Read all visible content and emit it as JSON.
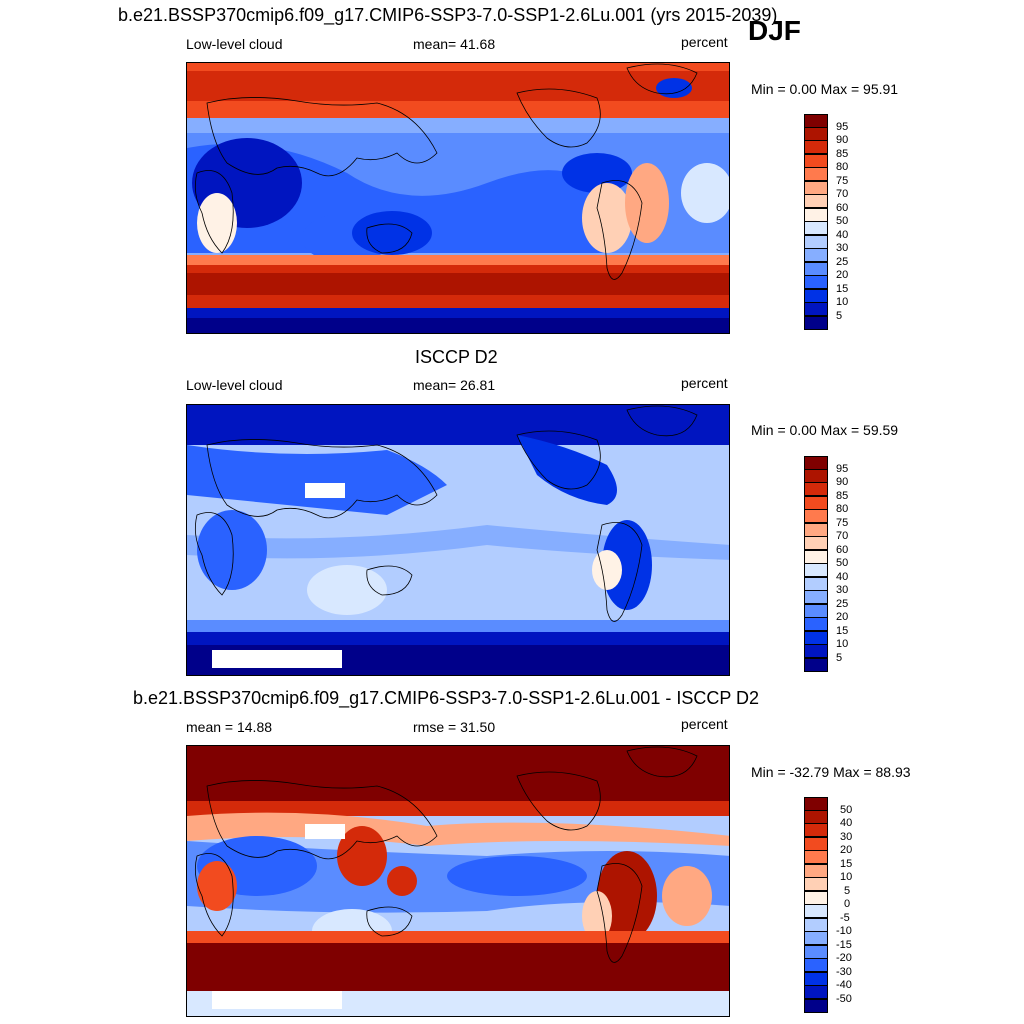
{
  "season": "DJF",
  "colors": {
    "abs_scale": [
      "#00008a",
      "#0015c0",
      "#0032e6",
      "#2a62ff",
      "#5a8cff",
      "#86aeff",
      "#b2cdff",
      "#d8e8ff",
      "#fff2e6",
      "#ffd0b5",
      "#ffa882",
      "#ff7a4d",
      "#f24b1f",
      "#d42a0a",
      "#ad1400",
      "#7f0000"
    ],
    "diff_scale": [
      "#00008a",
      "#0015c0",
      "#0032e6",
      "#2a62ff",
      "#5a8cff",
      "#86aeff",
      "#b2cdff",
      "#d8e8ff",
      "#fff2e6",
      "#ffd0b5",
      "#ffa882",
      "#ff7a4d",
      "#f24b1f",
      "#d42a0a",
      "#ad1400",
      "#7f0000"
    ],
    "coastline": "#000000",
    "missing": "#ffffff"
  },
  "panels": [
    {
      "id": "model",
      "title": "b.e21.BSSP370cmip6.f09_g17.CMIP6-SSP3-7.0-SSP1-2.6Lu.001 (yrs 2015-2039)",
      "left_label": "Low-level cloud",
      "center_label": "mean=  41.68",
      "units": "percent",
      "minmax": "Min =   0.00 Max =  95.91",
      "colorbar_labels": [
        "95",
        "90",
        "85",
        "80",
        "75",
        "70",
        "60",
        "50",
        "40",
        "30",
        "25",
        "20",
        "15",
        "10",
        "5"
      ]
    },
    {
      "id": "obs",
      "title": "ISCCP D2",
      "left_label": "Low-level cloud",
      "center_label": "mean=  26.81",
      "units": "percent",
      "minmax": "Min =   0.00 Max =  59.59",
      "colorbar_labels": [
        "95",
        "90",
        "85",
        "80",
        "75",
        "70",
        "60",
        "50",
        "40",
        "30",
        "25",
        "20",
        "15",
        "10",
        "5"
      ]
    },
    {
      "id": "diff",
      "title": "b.e21.BSSP370cmip6.f09_g17.CMIP6-SSP3-7.0-SSP1-2.6Lu.001 - ISCCP D2",
      "left_label": "mean =  14.88",
      "center_label": "rmse =  31.50",
      "units": "percent",
      "minmax": "Min = -32.79 Max =  88.93",
      "colorbar_labels": [
        "50",
        "40",
        "30",
        "20",
        "15",
        "10",
        "5",
        "0",
        "-5",
        "-10",
        "-15",
        "-20",
        "-30",
        "-40",
        "-50"
      ]
    }
  ]
}
